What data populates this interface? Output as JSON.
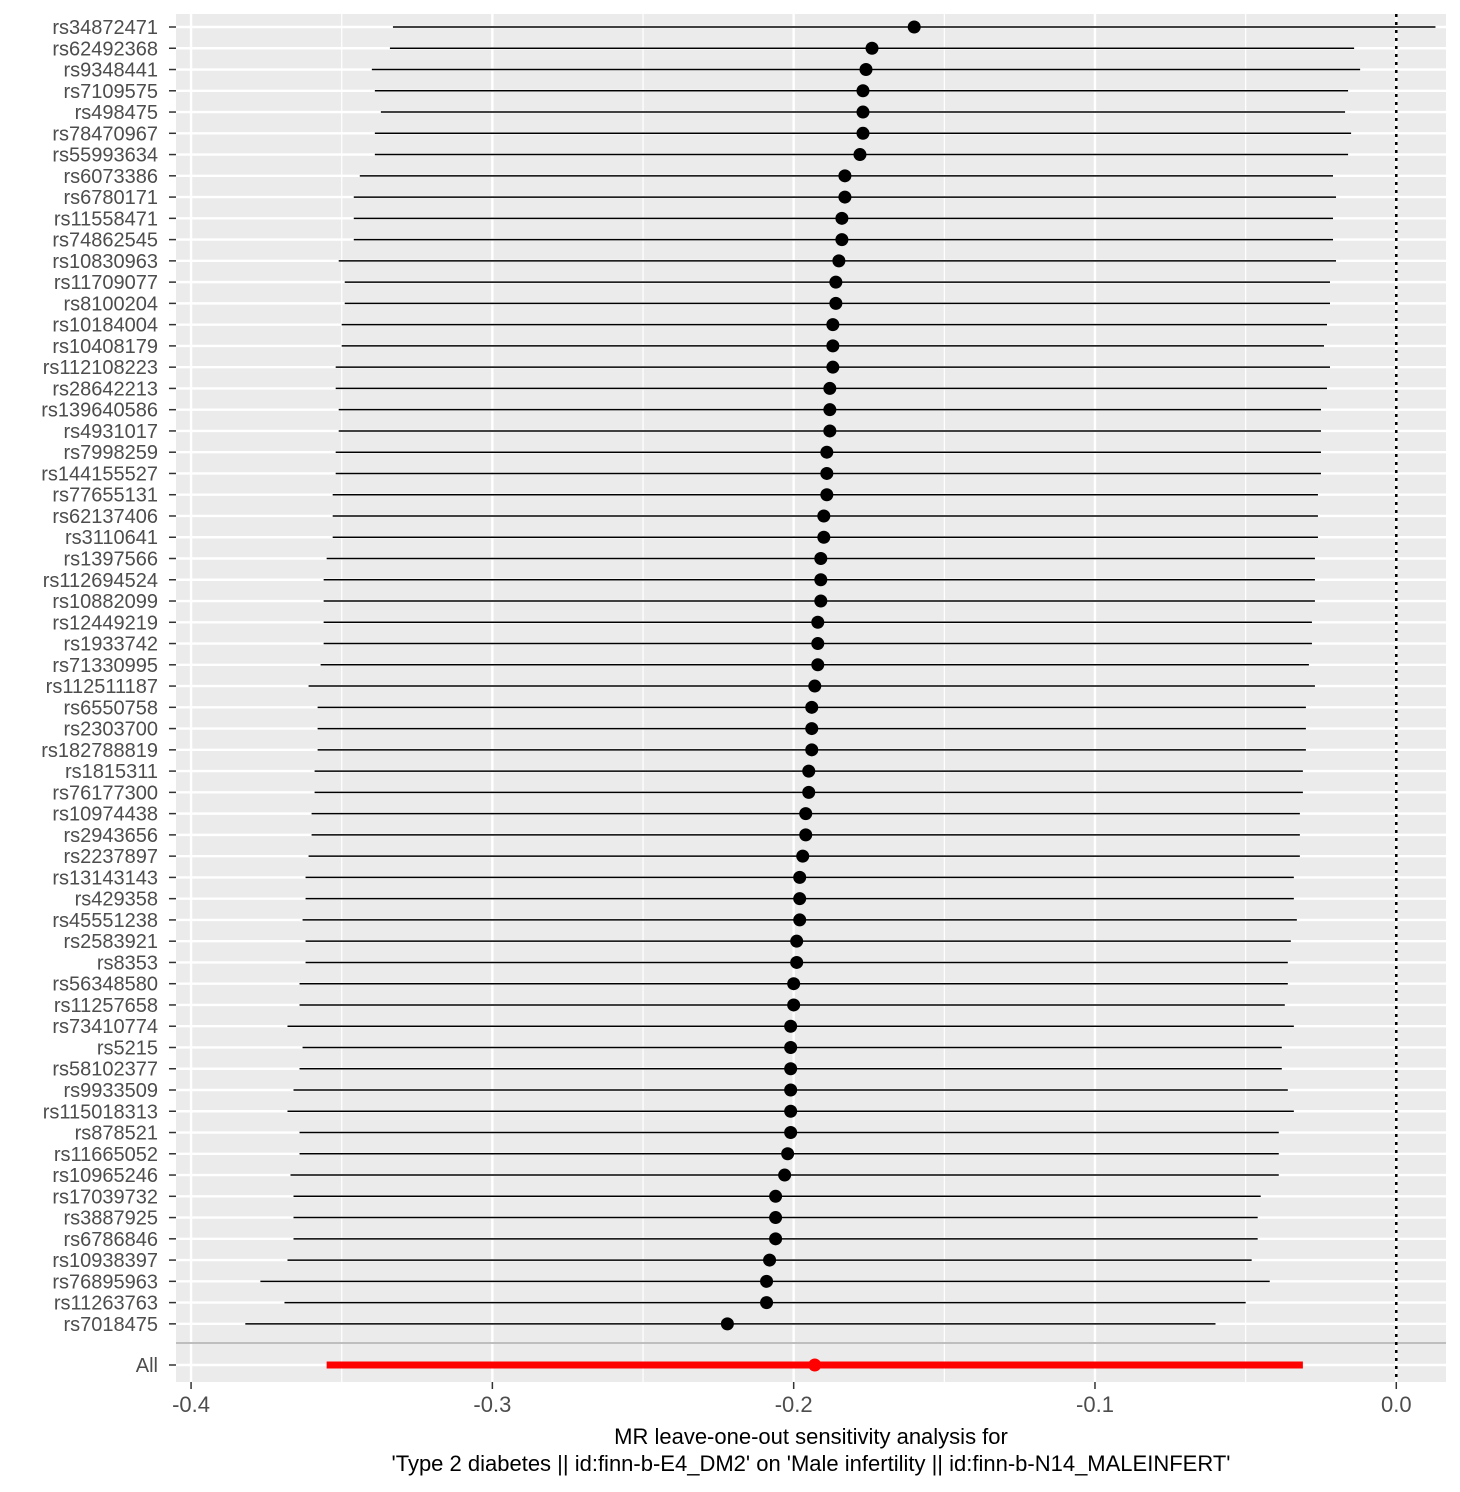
{
  "chart_data": {
    "type": "forest",
    "x_axis": {
      "title_line1": "MR leave-one-out sensitivity analysis for",
      "title_line2": "'Type 2 diabetes || id:finn-b-E4_DM2' on 'Male infertility || id:finn-b-N14_MALEINFERT'",
      "ticks": [
        -0.4,
        -0.3,
        -0.2,
        -0.1,
        0.0
      ],
      "tick_labels": [
        "-0.4",
        "-0.3",
        "-0.2",
        "-0.1",
        "0.0"
      ],
      "range": [
        -0.405,
        0.0165
      ],
      "reference_line": 0.0
    },
    "grid": true,
    "colors": {
      "panel": "#ebebeb",
      "grid": "#ffffff",
      "point": "#000000",
      "overall": "#ff0000",
      "separator": "#bebebe"
    },
    "snps": [
      {
        "label": "rs34872471",
        "b": -0.16,
        "lo": -0.333,
        "hi": 0.013
      },
      {
        "label": "rs62492368",
        "b": -0.174,
        "lo": -0.334,
        "hi": -0.014
      },
      {
        "label": "rs9348441",
        "b": -0.176,
        "lo": -0.34,
        "hi": -0.012
      },
      {
        "label": "rs7109575",
        "b": -0.177,
        "lo": -0.339,
        "hi": -0.016
      },
      {
        "label": "rs498475",
        "b": -0.177,
        "lo": -0.337,
        "hi": -0.017
      },
      {
        "label": "rs78470967",
        "b": -0.177,
        "lo": -0.339,
        "hi": -0.015
      },
      {
        "label": "rs55993634",
        "b": -0.178,
        "lo": -0.339,
        "hi": -0.016
      },
      {
        "label": "rs6073386",
        "b": -0.183,
        "lo": -0.344,
        "hi": -0.021
      },
      {
        "label": "rs6780171",
        "b": -0.183,
        "lo": -0.346,
        "hi": -0.02
      },
      {
        "label": "rs11558471",
        "b": -0.184,
        "lo": -0.346,
        "hi": -0.021
      },
      {
        "label": "rs74862545",
        "b": -0.184,
        "lo": -0.346,
        "hi": -0.021
      },
      {
        "label": "rs10830963",
        "b": -0.185,
        "lo": -0.351,
        "hi": -0.02
      },
      {
        "label": "rs11709077",
        "b": -0.186,
        "lo": -0.349,
        "hi": -0.022
      },
      {
        "label": "rs8100204",
        "b": -0.186,
        "lo": -0.349,
        "hi": -0.022
      },
      {
        "label": "rs10184004",
        "b": -0.187,
        "lo": -0.35,
        "hi": -0.023
      },
      {
        "label": "rs10408179",
        "b": -0.187,
        "lo": -0.35,
        "hi": -0.024
      },
      {
        "label": "rs112108223",
        "b": -0.187,
        "lo": -0.352,
        "hi": -0.022
      },
      {
        "label": "rs28642213",
        "b": -0.188,
        "lo": -0.352,
        "hi": -0.023
      },
      {
        "label": "rs139640586",
        "b": -0.188,
        "lo": -0.351,
        "hi": -0.025
      },
      {
        "label": "rs4931017",
        "b": -0.188,
        "lo": -0.351,
        "hi": -0.025
      },
      {
        "label": "rs7998259",
        "b": -0.189,
        "lo": -0.352,
        "hi": -0.025
      },
      {
        "label": "rs144155527",
        "b": -0.189,
        "lo": -0.352,
        "hi": -0.025
      },
      {
        "label": "rs77655131",
        "b": -0.189,
        "lo": -0.353,
        "hi": -0.026
      },
      {
        "label": "rs62137406",
        "b": -0.19,
        "lo": -0.353,
        "hi": -0.026
      },
      {
        "label": "rs3110641",
        "b": -0.19,
        "lo": -0.353,
        "hi": -0.026
      },
      {
        "label": "rs1397566",
        "b": -0.191,
        "lo": -0.355,
        "hi": -0.027
      },
      {
        "label": "rs112694524",
        "b": -0.191,
        "lo": -0.356,
        "hi": -0.027
      },
      {
        "label": "rs10882099",
        "b": -0.191,
        "lo": -0.356,
        "hi": -0.027
      },
      {
        "label": "rs12449219",
        "b": -0.192,
        "lo": -0.356,
        "hi": -0.028
      },
      {
        "label": "rs1933742",
        "b": -0.192,
        "lo": -0.356,
        "hi": -0.028
      },
      {
        "label": "rs71330995",
        "b": -0.192,
        "lo": -0.357,
        "hi": -0.029
      },
      {
        "label": "rs112511187",
        "b": -0.193,
        "lo": -0.361,
        "hi": -0.027
      },
      {
        "label": "rs6550758",
        "b": -0.194,
        "lo": -0.358,
        "hi": -0.03
      },
      {
        "label": "rs2303700",
        "b": -0.194,
        "lo": -0.358,
        "hi": -0.03
      },
      {
        "label": "rs182788819",
        "b": -0.194,
        "lo": -0.358,
        "hi": -0.03
      },
      {
        "label": "rs1815311",
        "b": -0.195,
        "lo": -0.359,
        "hi": -0.031
      },
      {
        "label": "rs76177300",
        "b": -0.195,
        "lo": -0.359,
        "hi": -0.031
      },
      {
        "label": "rs10974438",
        "b": -0.196,
        "lo": -0.36,
        "hi": -0.032
      },
      {
        "label": "rs2943656",
        "b": -0.196,
        "lo": -0.36,
        "hi": -0.032
      },
      {
        "label": "rs2237897",
        "b": -0.197,
        "lo": -0.361,
        "hi": -0.032
      },
      {
        "label": "rs13143143",
        "b": -0.198,
        "lo": -0.362,
        "hi": -0.034
      },
      {
        "label": "rs429358",
        "b": -0.198,
        "lo": -0.362,
        "hi": -0.034
      },
      {
        "label": "rs45551238",
        "b": -0.198,
        "lo": -0.363,
        "hi": -0.033
      },
      {
        "label": "rs2583921",
        "b": -0.199,
        "lo": -0.362,
        "hi": -0.035
      },
      {
        "label": "rs8353",
        "b": -0.199,
        "lo": -0.362,
        "hi": -0.036
      },
      {
        "label": "rs56348580",
        "b": -0.2,
        "lo": -0.364,
        "hi": -0.036
      },
      {
        "label": "rs11257658",
        "b": -0.2,
        "lo": -0.364,
        "hi": -0.037
      },
      {
        "label": "rs73410774",
        "b": -0.201,
        "lo": -0.368,
        "hi": -0.034
      },
      {
        "label": "rs5215",
        "b": -0.201,
        "lo": -0.363,
        "hi": -0.038
      },
      {
        "label": "rs58102377",
        "b": -0.201,
        "lo": -0.364,
        "hi": -0.038
      },
      {
        "label": "rs9933509",
        "b": -0.201,
        "lo": -0.366,
        "hi": -0.036
      },
      {
        "label": "rs115018313",
        "b": -0.201,
        "lo": -0.368,
        "hi": -0.034
      },
      {
        "label": "rs878521",
        "b": -0.201,
        "lo": -0.364,
        "hi": -0.039
      },
      {
        "label": "rs11665052",
        "b": -0.202,
        "lo": -0.364,
        "hi": -0.039
      },
      {
        "label": "rs10965246",
        "b": -0.203,
        "lo": -0.367,
        "hi": -0.039
      },
      {
        "label": "rs17039732",
        "b": -0.206,
        "lo": -0.366,
        "hi": -0.045
      },
      {
        "label": "rs3887925",
        "b": -0.206,
        "lo": -0.366,
        "hi": -0.046
      },
      {
        "label": "rs6786846",
        "b": -0.206,
        "lo": -0.366,
        "hi": -0.046
      },
      {
        "label": "rs10938397",
        "b": -0.208,
        "lo": -0.368,
        "hi": -0.048
      },
      {
        "label": "rs76895963",
        "b": -0.209,
        "lo": -0.377,
        "hi": -0.042
      },
      {
        "label": "rs11263763",
        "b": -0.209,
        "lo": -0.369,
        "hi": -0.05
      },
      {
        "label": "rs7018475",
        "b": -0.222,
        "lo": -0.382,
        "hi": -0.06
      }
    ],
    "overall": {
      "label": "All",
      "b": -0.193,
      "lo": -0.355,
      "hi": -0.031
    }
  }
}
